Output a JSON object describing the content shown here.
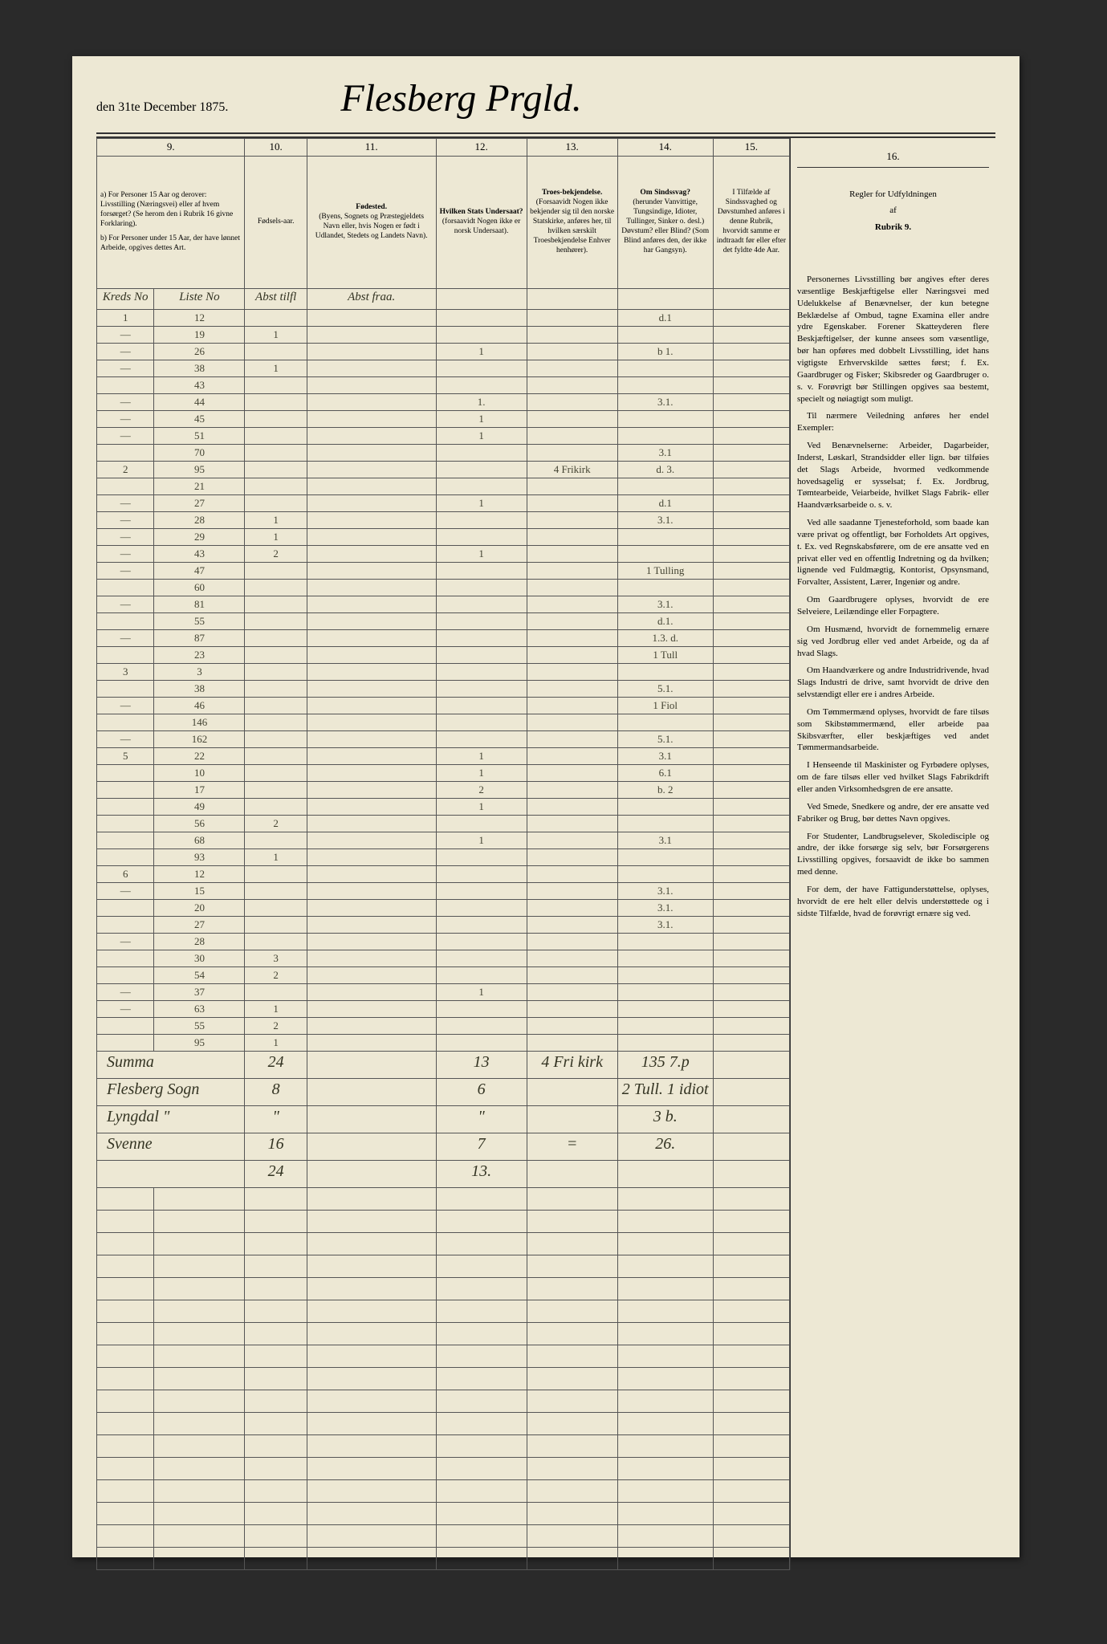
{
  "header": {
    "date": "den 31te December 1875.",
    "title_script": "Flesberg Prgld."
  },
  "columns": {
    "nums": [
      "9.",
      "10.",
      "11.",
      "12.",
      "13.",
      "14.",
      "15.",
      "16."
    ],
    "c9": {
      "a": "a) For Personer 15 Aar og derover: Livsstilling (Næringsvei) eller af hvem forsørget? (Se herom den i Rubrik 16 givne Forklaring).",
      "b": "b) For Personer under 15 Aar, der have lønnet Arbeide, opgives dettes Art."
    },
    "c9_sub1": "Kreds No",
    "c9_sub2": "Liste No",
    "c10": "Fødsels-aar.",
    "c10_script": "Abst tilfl",
    "c11": "Fødested.",
    "c11_sub": "(Byens, Sognets og Præstegjeldets Navn eller, hvis Nogen er født i Udlandet, Stedets og Landets Navn).",
    "c11_script": "Abst fraa.",
    "c12": "Hvilken Stats Undersaat?",
    "c12_sub": "(forsaavidt Nogen ikke er norsk Undersaat).",
    "c13": "Troes-bekjendelse.",
    "c13_sub": "(Forsaavidt Nogen ikke bekjender sig til den norske Statskirke, anføres her, til hvilken særskilt Troesbekjendelse Enhver henhører).",
    "c14": "Om Sindssvag?",
    "c14_sub": "(herunder Vanvittige, Tungsindige, Idioter, Tullinger, Sinker o. desl.) Døvstum? eller Blind? (Som Blind anføres den, der ikke har Gangsyn).",
    "c15": "I Tilfælde af Sindssvaghed og Døvstumhed anføres i denne Rubrik, hvorvidt samme er indtraadt før eller efter det fyldte 4de Aar."
  },
  "rows": [
    {
      "c1": "1",
      "c2": "12",
      "c3": "",
      "c4": "",
      "c5": "",
      "c6": "",
      "c7": "d.1",
      "c8": ""
    },
    {
      "c1": "―",
      "c2": "19",
      "c3": "1",
      "c4": "",
      "c5": "",
      "c6": "",
      "c7": "",
      "c8": ""
    },
    {
      "c1": "―",
      "c2": "26",
      "c3": "",
      "c4": "",
      "c5": "1",
      "c6": "",
      "c7": "b 1.",
      "c8": ""
    },
    {
      "c1": "―",
      "c2": "38",
      "c3": "1",
      "c4": "",
      "c5": "",
      "c6": "",
      "c7": "",
      "c8": ""
    },
    {
      "c1": "",
      "c2": "43",
      "c3": "",
      "c4": "",
      "c5": "",
      "c6": "",
      "c7": "",
      "c8": ""
    },
    {
      "c1": "―",
      "c2": "44",
      "c3": "",
      "c4": "",
      "c5": "1.",
      "c6": "",
      "c7": "3.1.",
      "c8": ""
    },
    {
      "c1": "―",
      "c2": "45",
      "c3": "",
      "c4": "",
      "c5": "1",
      "c6": "",
      "c7": "",
      "c8": ""
    },
    {
      "c1": "―",
      "c2": "51",
      "c3": "",
      "c4": "",
      "c5": "1",
      "c6": "",
      "c7": "",
      "c8": ""
    },
    {
      "c1": "",
      "c2": "70",
      "c3": "",
      "c4": "",
      "c5": "",
      "c6": "",
      "c7": "3.1",
      "c8": ""
    },
    {
      "c1": "2",
      "c2": "95",
      "c3": "",
      "c4": "",
      "c5": "",
      "c6": "4 Frikirk",
      "c7": "d. 3.",
      "c8": ""
    },
    {
      "c1": "",
      "c2": "21",
      "c3": "",
      "c4": "",
      "c5": "",
      "c6": "",
      "c7": "",
      "c8": ""
    },
    {
      "c1": "―",
      "c2": "27",
      "c3": "",
      "c4": "",
      "c5": "1",
      "c6": "",
      "c7": "d.1",
      "c8": ""
    },
    {
      "c1": "―",
      "c2": "28",
      "c3": "1",
      "c4": "",
      "c5": "",
      "c6": "",
      "c7": "3.1.",
      "c8": ""
    },
    {
      "c1": "―",
      "c2": "29",
      "c3": "1",
      "c4": "",
      "c5": "",
      "c6": "",
      "c7": "",
      "c8": ""
    },
    {
      "c1": "―",
      "c2": "43",
      "c3": "2",
      "c4": "",
      "c5": "1",
      "c6": "",
      "c7": "",
      "c8": ""
    },
    {
      "c1": "―",
      "c2": "47",
      "c3": "",
      "c4": "",
      "c5": "",
      "c6": "",
      "c7": "1 Tulling",
      "c8": ""
    },
    {
      "c1": "",
      "c2": "60",
      "c3": "",
      "c4": "",
      "c5": "",
      "c6": "",
      "c7": "",
      "c8": ""
    },
    {
      "c1": "―",
      "c2": "81",
      "c3": "",
      "c4": "",
      "c5": "",
      "c6": "",
      "c7": "3.1.",
      "c8": ""
    },
    {
      "c1": "",
      "c2": "55",
      "c3": "",
      "c4": "",
      "c5": "",
      "c6": "",
      "c7": "d.1.",
      "c8": ""
    },
    {
      "c1": "―",
      "c2": "87",
      "c3": "",
      "c4": "",
      "c5": "",
      "c6": "",
      "c7": "1.3. d.",
      "c8": ""
    },
    {
      "c1": "",
      "c2": "23",
      "c3": "",
      "c4": "",
      "c5": "",
      "c6": "",
      "c7": "1 Tull",
      "c8": ""
    },
    {
      "c1": "3",
      "c2": "3",
      "c3": "",
      "c4": "",
      "c5": "",
      "c6": "",
      "c7": "",
      "c8": ""
    },
    {
      "c1": "",
      "c2": "38",
      "c3": "",
      "c4": "",
      "c5": "",
      "c6": "",
      "c7": "5.1.",
      "c8": ""
    },
    {
      "c1": "―",
      "c2": "46",
      "c3": "",
      "c4": "",
      "c5": "",
      "c6": "",
      "c7": "1 Fiol",
      "c8": ""
    },
    {
      "c1": "",
      "c2": "146",
      "c3": "",
      "c4": "",
      "c5": "",
      "c6": "",
      "c7": "",
      "c8": ""
    },
    {
      "c1": "―",
      "c2": "162",
      "c3": "",
      "c4": "",
      "c5": "",
      "c6": "",
      "c7": "5.1.",
      "c8": ""
    },
    {
      "c1": "5",
      "c2": "22",
      "c3": "",
      "c4": "",
      "c5": "1",
      "c6": "",
      "c7": "3.1",
      "c8": ""
    },
    {
      "c1": "",
      "c2": "10",
      "c3": "",
      "c4": "",
      "c5": "1",
      "c6": "",
      "c7": "6.1",
      "c8": ""
    },
    {
      "c1": "",
      "c2": "17",
      "c3": "",
      "c4": "",
      "c5": "2",
      "c6": "",
      "c7": "b. 2",
      "c8": ""
    },
    {
      "c1": "",
      "c2": "49",
      "c3": "",
      "c4": "",
      "c5": "1",
      "c6": "",
      "c7": "",
      "c8": ""
    },
    {
      "c1": "",
      "c2": "56",
      "c3": "2",
      "c4": "",
      "c5": "",
      "c6": "",
      "c7": "",
      "c8": ""
    },
    {
      "c1": "",
      "c2": "68",
      "c3": "",
      "c4": "",
      "c5": "1",
      "c6": "",
      "c7": "3.1",
      "c8": ""
    },
    {
      "c1": "",
      "c2": "93",
      "c3": "1",
      "c4": "",
      "c5": "",
      "c6": "",
      "c7": "",
      "c8": ""
    },
    {
      "c1": "6",
      "c2": "12",
      "c3": "",
      "c4": "",
      "c5": "",
      "c6": "",
      "c7": "",
      "c8": ""
    },
    {
      "c1": "―",
      "c2": "15",
      "c3": "",
      "c4": "",
      "c5": "",
      "c6": "",
      "c7": "3.1.",
      "c8": ""
    },
    {
      "c1": "",
      "c2": "20",
      "c3": "",
      "c4": "",
      "c5": "",
      "c6": "",
      "c7": "3.1.",
      "c8": ""
    },
    {
      "c1": "",
      "c2": "27",
      "c3": "",
      "c4": "",
      "c5": "",
      "c6": "",
      "c7": "3.1.",
      "c8": ""
    },
    {
      "c1": "―",
      "c2": "28",
      "c3": "",
      "c4": "",
      "c5": "",
      "c6": "",
      "c7": "",
      "c8": ""
    },
    {
      "c1": "",
      "c2": "30",
      "c3": "3",
      "c4": "",
      "c5": "",
      "c6": "",
      "c7": "",
      "c8": ""
    },
    {
      "c1": "",
      "c2": "54",
      "c3": "2",
      "c4": "",
      "c5": "",
      "c6": "",
      "c7": "",
      "c8": ""
    },
    {
      "c1": "―",
      "c2": "37",
      "c3": "",
      "c4": "",
      "c5": "1",
      "c6": "",
      "c7": "",
      "c8": ""
    },
    {
      "c1": "―",
      "c2": "63",
      "c3": "1",
      "c4": "",
      "c5": "",
      "c6": "",
      "c7": "",
      "c8": ""
    },
    {
      "c1": "",
      "c2": "55",
      "c3": "2",
      "c4": "",
      "c5": "",
      "c6": "",
      "c7": "",
      "c8": ""
    },
    {
      "c1": "",
      "c2": "95",
      "c3": "1",
      "c4": "",
      "c5": "",
      "c6": "",
      "c7": "",
      "c8": ""
    }
  ],
  "summary": [
    {
      "label": "Summa",
      "c3": "24",
      "c4": "",
      "c5": "13",
      "c6": "4 Fri kirk",
      "c7": "135 7.p"
    },
    {
      "label": "Flesberg Sogn",
      "c3": "8",
      "c4": "",
      "c5": "6",
      "c6": "",
      "c7": "2 Tull. 1 idiot"
    },
    {
      "label": "Lyngdal    \"",
      "c3": "\"",
      "c4": "",
      "c5": "\"",
      "c6": "",
      "c7": "3 b."
    },
    {
      "label": "Svenne",
      "c3": "16",
      "c4": "",
      "c5": "7",
      "c6": "=",
      "c7": "26."
    },
    {
      "label": "",
      "c3": "24",
      "c4": "",
      "c5": "13.",
      "c6": "",
      "c7": ""
    }
  ],
  "blank_rows": 17,
  "r16": {
    "title": "Regler for Udfyldningen",
    "af": "af",
    "rubrik": "Rubrik 9.",
    "paras": [
      "Personernes Livsstilling bør angives efter deres væsentlige Beskjæftigelse eller Næringsvei med Udelukkelse af Benævnelser, der kun betegne Beklædelse af Ombud, tagne Examina eller andre ydre Egenskaber. Forener Skatteyderen flere Beskjæftigelser, der kunne ansees som væsentlige, bør han opføres med dobbelt Livsstilling, idet hans vigtigste Erhvervskilde sættes først; f. Ex. Gaardbruger og Fisker; Skibsreder og Gaardbruger o. s. v. Forøvrigt bør Stillingen opgives saa bestemt, specielt og nøiagtigt som muligt.",
      "Til nærmere Veiledning anføres her endel Exempler:",
      "Ved Benævnelserne: Arbeider, Dagarbeider, Inderst, Løskarl, Strandsidder eller lign. bør tilføies det Slags Arbeide, hvormed vedkommende hovedsagelig er sysselsat; f. Ex. Jordbrug, Tømtearbeide, Veiarbeide, hvilket Slags Fabrik- eller Haandværksarbeide o. s. v.",
      "Ved alle saadanne Tjenesteforhold, som baade kan være privat og offentligt, bør Forholdets Art opgives, t. Ex. ved Regnskabsførere, om de ere ansatte ved en privat eller ved en offentlig Indretning og da hvilken; lignende ved Fuldmægtig, Kontorist, Opsynsmand, Forvalter, Assistent, Lærer, Ingeniør og andre.",
      "Om Gaardbrugere oplyses, hvorvidt de ere Selveiere, Leilændinge eller Forpagtere.",
      "Om Husmænd, hvorvidt de fornemmelig ernære sig ved Jordbrug eller ved andet Arbeide, og da af hvad Slags.",
      "Om Haandværkere og andre Industridrivende, hvad Slags Industri de drive, samt hvorvidt de drive den selvstændigt eller ere i andres Arbeide.",
      "Om Tømmermænd oplyses, hvorvidt de fare tilsøs som Skibstømmermænd, eller arbeide paa Skibsværfter, eller beskjæftiges ved andet Tømmermandsarbeide.",
      "I Henseende til Maskinister og Fyrbødere oplyses, om de fare tilsøs eller ved hvilket Slags Fabrikdrift eller anden Virksomhedsgren de ere ansatte.",
      "Ved Smede, Snedkere og andre, der ere ansatte ved Fabriker og Brug, bør dettes Navn opgives.",
      "For Studenter, Landbrugselever, Skoledisciple og andre, der ikke forsørge sig selv, bør Forsørgerens Livsstilling opgives, forsaavidt de ikke bo sammen med denne.",
      "For dem, der have Fattigunderstøttelse, oplyses, hvorvidt de ere helt eller delvis understøttede og i sidste Tilfælde, hvad de forøvrigt ernære sig ved."
    ]
  }
}
